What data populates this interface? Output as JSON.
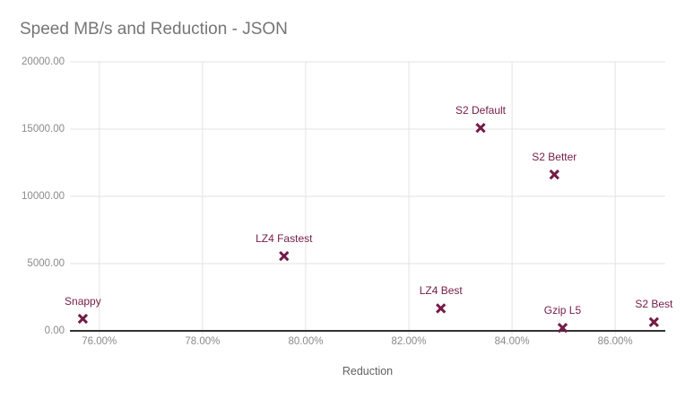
{
  "chart_data": {
    "type": "scatter",
    "title": "Speed MB/s and Reduction - JSON",
    "xlabel": "Reduction",
    "ylabel": "",
    "grid": true,
    "legend_position": "none",
    "marker_shape": "x",
    "xlim": [
      75.43,
      86.97
    ],
    "ylim": [
      0,
      20000
    ],
    "x_ticks": {
      "values": [
        76,
        78,
        80,
        82,
        84,
        86
      ],
      "labels": [
        "76.00%",
        "78.00%",
        "80.00%",
        "82.00%",
        "84.00%",
        "86.00%"
      ]
    },
    "y_ticks": {
      "values": [
        0,
        5000,
        10000,
        15000,
        20000
      ],
      "labels": [
        "0.00",
        "5000.00",
        "10000.00",
        "15000.00",
        "20000.00"
      ]
    },
    "series": [
      {
        "name": "Speed MB/s",
        "points": [
          {
            "label": "Snappy",
            "x": 75.68,
            "y": 900
          },
          {
            "label": "LZ4 Fastest",
            "x": 79.58,
            "y": 5560
          },
          {
            "label": "LZ4 Best",
            "x": 82.62,
            "y": 1670
          },
          {
            "label": "S2 Default",
            "x": 83.39,
            "y": 15090
          },
          {
            "label": "S2 Better",
            "x": 84.82,
            "y": 11620
          },
          {
            "label": "Gzip L5",
            "x": 84.98,
            "y": 220
          },
          {
            "label": "S2 Best",
            "x": 86.75,
            "y": 650
          }
        ]
      }
    ],
    "colors": {
      "marker": "#741b47",
      "point_label": "#741b47",
      "title": "#757575",
      "tick_label": "#8a8a8a",
      "axis_title": "#616161",
      "gridline": "#e3e3e3",
      "axis_line": "#333333",
      "background": "#ffffff"
    }
  }
}
